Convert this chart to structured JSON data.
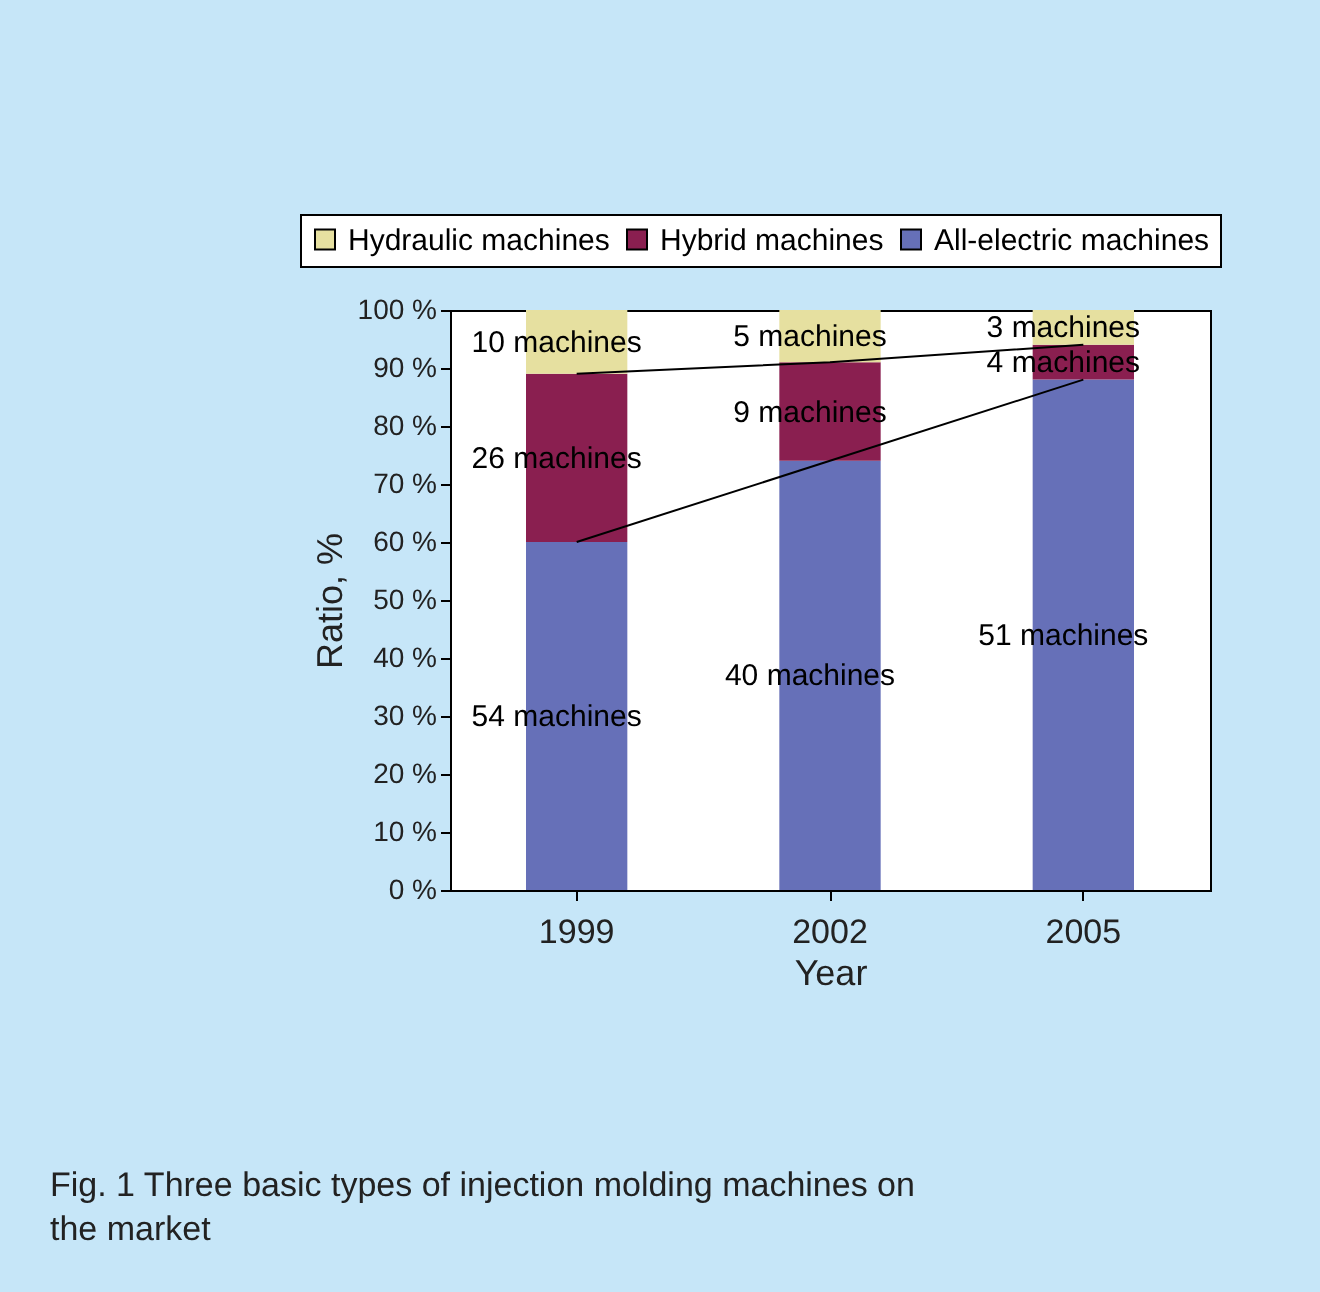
{
  "chart_data": {
    "type": "bar",
    "stacked": true,
    "xlabel": "Year",
    "ylabel": "Ratio, %",
    "categories": [
      "1999",
      "2002",
      "2005"
    ],
    "series": [
      {
        "name": "All-electric machines",
        "color": "#6670b8",
        "values": [
          60,
          74,
          88
        ]
      },
      {
        "name": "Hybrid machines",
        "color": "#8a1f50",
        "values": [
          29,
          17,
          6
        ]
      },
      {
        "name": "Hydraulic machines",
        "color": "#e6e0a0",
        "values": [
          11,
          9,
          6
        ]
      },
      {
        "type": "line",
        "color": "#000000",
        "values": [
          60,
          74,
          88
        ]
      },
      {
        "type": "line",
        "color": "#000000",
        "values": [
          89,
          91,
          94
        ]
      }
    ],
    "ylim": [
      0,
      100
    ],
    "yticks": [
      {
        "value": 0,
        "label": "0 %"
      },
      {
        "value": 10,
        "label": "10 %"
      },
      {
        "value": 20,
        "label": "20 %"
      },
      {
        "value": 30,
        "label": "30 %"
      },
      {
        "value": 40,
        "label": "40 %"
      },
      {
        "value": 50,
        "label": "50 %"
      },
      {
        "value": 60,
        "label": "60 %"
      },
      {
        "value": 70,
        "label": "70 %"
      },
      {
        "value": 80,
        "label": "80 %"
      },
      {
        "value": 90,
        "label": "90 %"
      },
      {
        "value": 100,
        "label": "100 %"
      }
    ],
    "legend": "top",
    "grid": false,
    "annotations": [
      "54 machines",
      "40 machines",
      "51 machines",
      "26 machines",
      "9 machines",
      "4 machines",
      "10 machines",
      "5 machines",
      "3 machines",
      "Fig. 1 Three basic types of injection molding machines on the market"
    ]
  }
}
